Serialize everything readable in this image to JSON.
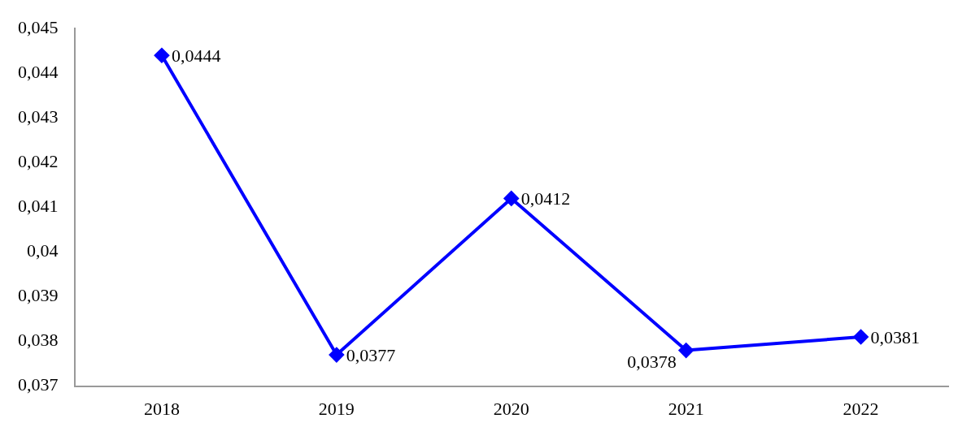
{
  "chart_data": {
    "type": "line",
    "categories": [
      "2018",
      "2019",
      "2020",
      "2021",
      "2022"
    ],
    "series": [
      {
        "color": "#0000ff",
        "values": [
          0.0444,
          0.0377,
          0.0412,
          0.0378,
          0.0381
        ],
        "value_labels": [
          "0,0444",
          "0,0377",
          "0,0412",
          "0,0378",
          "0,0381"
        ]
      }
    ],
    "ylim": [
      0.037,
      0.045
    ],
    "yticks": [
      {
        "value": 0.037,
        "label": "0,037"
      },
      {
        "value": 0.038,
        "label": "0,038"
      },
      {
        "value": 0.039,
        "label": "0,039"
      },
      {
        "value": 0.04,
        "label": "0,04"
      },
      {
        "value": 0.041,
        "label": "0,041"
      },
      {
        "value": 0.042,
        "label": "0,042"
      },
      {
        "value": 0.043,
        "label": "0,043"
      },
      {
        "value": 0.044,
        "label": "0,044"
      },
      {
        "value": 0.045,
        "label": "0,045"
      }
    ],
    "grid": false,
    "legend": false,
    "marker": "diamond",
    "line_style": "solid"
  }
}
